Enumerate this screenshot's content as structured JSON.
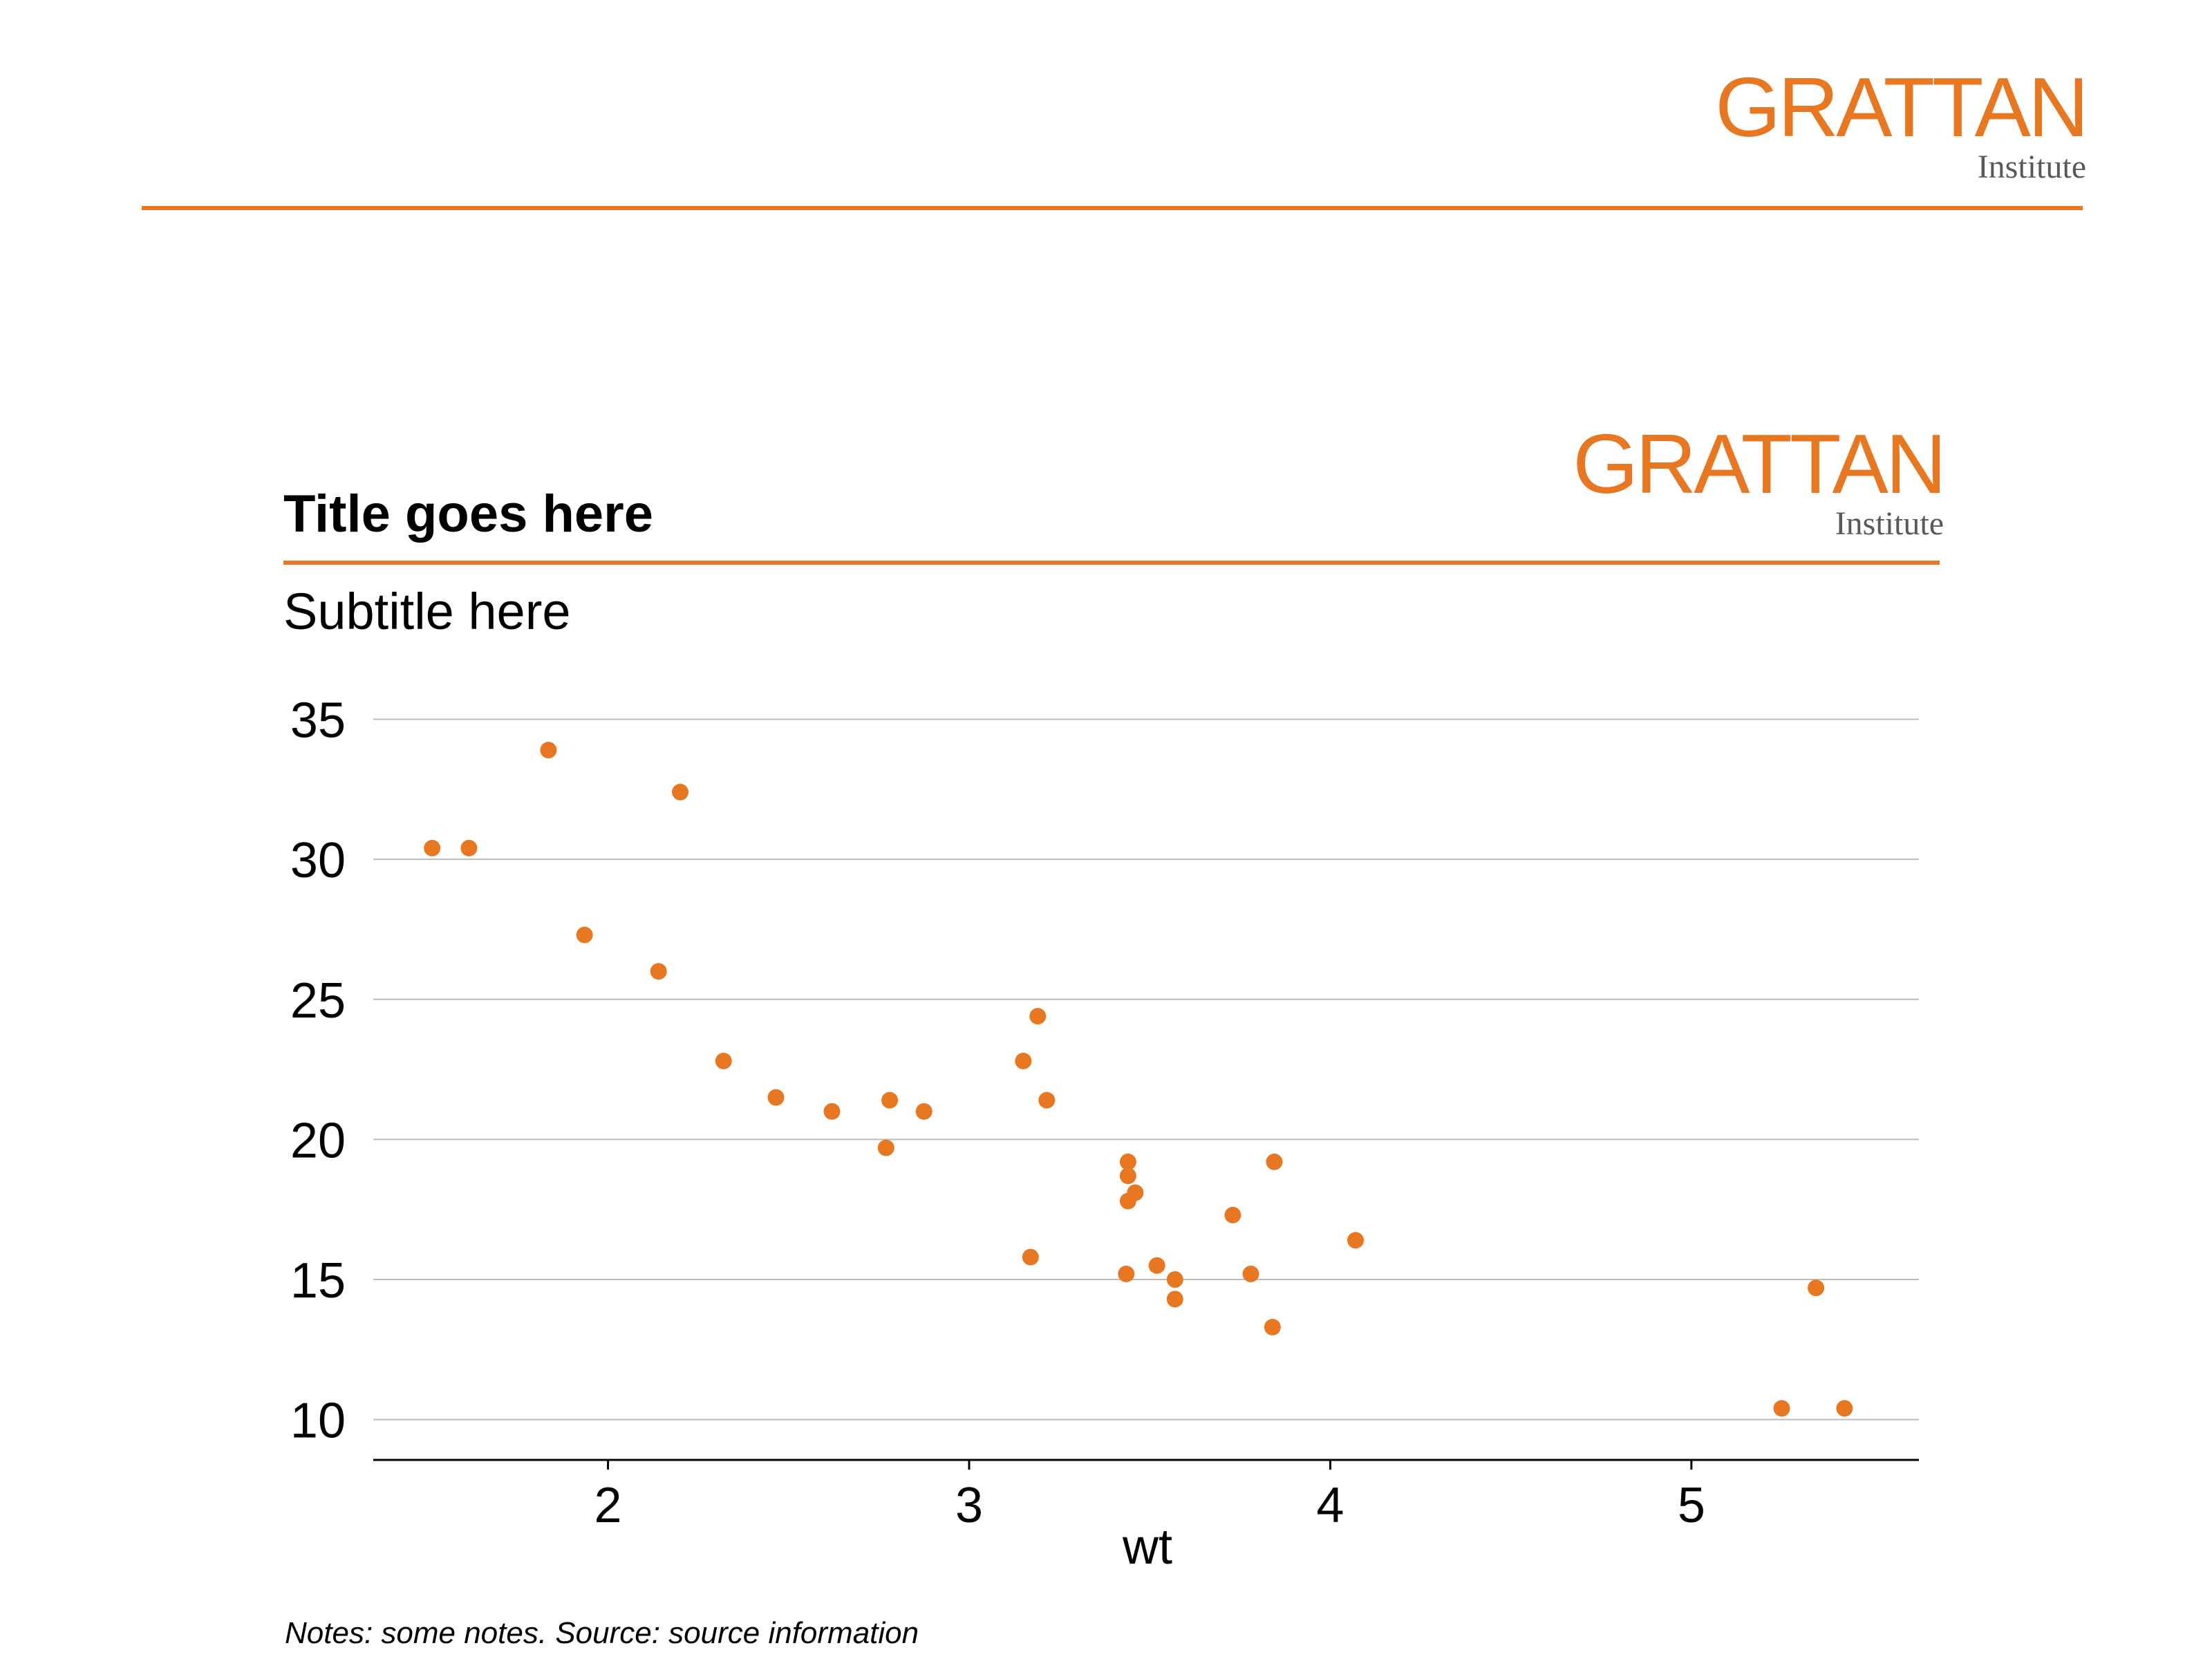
{
  "logos": {
    "brand_word": "GRATTAN",
    "brand_sub": "Institute"
  },
  "colors": {
    "accent": "#E87722",
    "point": "#E87722",
    "grid": "#BDBDBD",
    "axis": "#000000",
    "sub_text": "#595959"
  },
  "header": {
    "title": "Title goes here",
    "subtitle": "Subtitle here"
  },
  "footer": {
    "notes": "Notes: some notes. Source: source information"
  },
  "chart_data": {
    "type": "scatter",
    "title": "Title goes here",
    "subtitle": "Subtitle here",
    "xlabel": "wt",
    "ylabel": "",
    "xlim": [
      1.35,
      5.63
    ],
    "ylim": [
      9.3,
      36
    ],
    "xticks": [
      2,
      3,
      4,
      5
    ],
    "yticks": [
      10,
      15,
      20,
      25,
      30,
      35
    ],
    "grid": "horizontal",
    "legend": "none",
    "points": [
      {
        "x": 2.62,
        "y": 21.0
      },
      {
        "x": 2.875,
        "y": 21.0
      },
      {
        "x": 2.32,
        "y": 22.8
      },
      {
        "x": 3.215,
        "y": 21.4
      },
      {
        "x": 3.44,
        "y": 18.7
      },
      {
        "x": 3.46,
        "y": 18.1
      },
      {
        "x": 3.57,
        "y": 14.3
      },
      {
        "x": 3.19,
        "y": 24.4
      },
      {
        "x": 3.15,
        "y": 22.8
      },
      {
        "x": 3.44,
        "y": 19.2
      },
      {
        "x": 3.44,
        "y": 17.8
      },
      {
        "x": 4.07,
        "y": 16.4
      },
      {
        "x": 3.73,
        "y": 17.3
      },
      {
        "x": 3.78,
        "y": 15.2
      },
      {
        "x": 5.25,
        "y": 10.4
      },
      {
        "x": 5.424,
        "y": 10.4
      },
      {
        "x": 5.345,
        "y": 14.7
      },
      {
        "x": 2.2,
        "y": 32.4
      },
      {
        "x": 1.615,
        "y": 30.4
      },
      {
        "x": 1.835,
        "y": 33.9
      },
      {
        "x": 2.465,
        "y": 21.5
      },
      {
        "x": 3.52,
        "y": 15.5
      },
      {
        "x": 3.435,
        "y": 15.2
      },
      {
        "x": 3.84,
        "y": 13.3
      },
      {
        "x": 3.845,
        "y": 19.2
      },
      {
        "x": 1.935,
        "y": 27.3
      },
      {
        "x": 2.14,
        "y": 26.0
      },
      {
        "x": 1.513,
        "y": 30.4
      },
      {
        "x": 3.17,
        "y": 15.8
      },
      {
        "x": 2.77,
        "y": 19.7
      },
      {
        "x": 3.57,
        "y": 15.0
      },
      {
        "x": 2.78,
        "y": 21.4
      }
    ]
  }
}
